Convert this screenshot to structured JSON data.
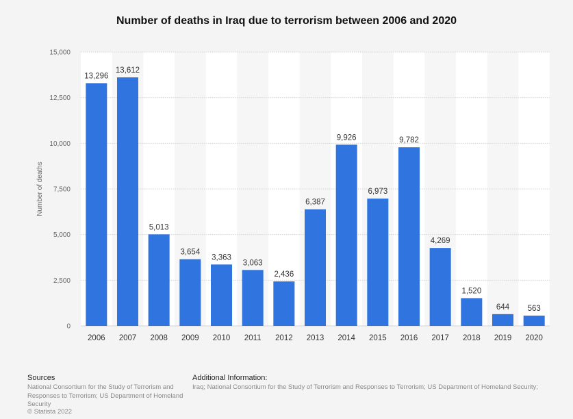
{
  "chart_data": {
    "type": "bar",
    "title": "Number of deaths in Iraq due to terrorism between 2006 and 2020",
    "ylabel": "Number of deaths",
    "xlabel": "",
    "categories": [
      "2006",
      "2007",
      "2008",
      "2009",
      "2010",
      "2011",
      "2012",
      "2013",
      "2014",
      "2015",
      "2016",
      "2017",
      "2018",
      "2019",
      "2020"
    ],
    "values": [
      13296,
      13612,
      5013,
      3654,
      3363,
      3063,
      2436,
      6387,
      9926,
      6973,
      9782,
      4269,
      1520,
      644,
      563
    ],
    "value_labels": [
      "13,296",
      "13,612",
      "5,013",
      "3,654",
      "3,363",
      "3,063",
      "2,436",
      "6,387",
      "9,926",
      "6,973",
      "9,782",
      "4,269",
      "1,520",
      "644",
      "563"
    ],
    "yticks": [
      0,
      2500,
      5000,
      7500,
      10000,
      12500,
      15000
    ],
    "ytick_labels": [
      "0",
      "2,500",
      "5,000",
      "7,500",
      "10,000",
      "12,500",
      "15,000"
    ],
    "ylim": [
      0,
      15000
    ],
    "bar_color": "#2f74df",
    "grid": true,
    "legend": "none"
  },
  "footer": {
    "sources_heading": "Sources",
    "sources_text": "National Consortium for the Study of Terrorism and Responses to Terrorism; US Department of Homeland Security",
    "additional_heading": "Additional Information:",
    "additional_text": "Iraq; National Consortium for the Study of Terrorism and Responses to Terrorism; US Department of Homeland Security;",
    "copyright": "© Statista 2022"
  }
}
